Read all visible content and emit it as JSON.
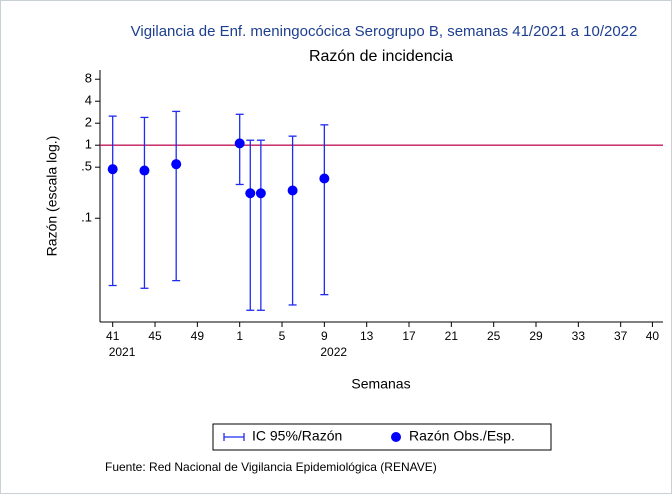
{
  "chart_data": {
    "type": "errorbar",
    "title": "Vigilancia de Enf. meningocócica Serogrupo B, semanas 41/2021 a 10/2022",
    "subtitle": "Razón de incidencia",
    "x_label": "Semanas",
    "y_label": "Razón (escala log.)",
    "note": "Fuente: Red Nacional de Vigilancia Epidemiológica (RENAVE)",
    "log_y": true,
    "grid": false,
    "legend": "bottom",
    "x": [
      41,
      44,
      47,
      53,
      54,
      55,
      58,
      61
    ],
    "series": [
      {
        "name": "IC 95%/Razón",
        "color": "#1f2cf0",
        "lower": [
          0.012,
          0.011,
          0.014,
          0.29,
          0.0055,
          0.0055,
          0.0065,
          0.009
        ],
        "upper": [
          2.5,
          2.4,
          2.9,
          2.65,
          1.17,
          1.17,
          1.33,
          1.9
        ]
      },
      {
        "name": "Razón Obs./Esp.",
        "color": "#0000ff",
        "values": [
          0.47,
          0.45,
          0.55,
          1.06,
          0.22,
          0.22,
          0.24,
          0.35
        ]
      }
    ],
    "reference_line": {
      "value": 1,
      "color": "#c2185b"
    },
    "xlim": [
      39.8,
      93
    ],
    "ylim": [
      0.0038,
      10.7
    ],
    "xticks": [
      41,
      45,
      49,
      {
        "value": 53,
        "label": "1"
      },
      {
        "value": 57,
        "label": "5"
      },
      {
        "value": 61,
        "label": "9"
      },
      {
        "value": 65,
        "label": "13"
      },
      {
        "value": 69,
        "label": "17"
      },
      {
        "value": 73,
        "label": "21"
      },
      {
        "value": 77,
        "label": "25"
      },
      {
        "value": 81,
        "label": "29"
      },
      {
        "value": 85,
        "label": "33"
      },
      {
        "value": 89,
        "label": "37"
      },
      {
        "value": 92,
        "label": "40"
      }
    ],
    "x_year_labels": [
      {
        "x": 41,
        "text": "2021"
      },
      {
        "x": 61,
        "text": "2022"
      }
    ],
    "yticks": [
      8,
      4,
      2,
      1,
      {
        "value": 0.5,
        "label": ".5"
      },
      {
        "value": 0.1,
        "label": ".1"
      }
    ]
  }
}
